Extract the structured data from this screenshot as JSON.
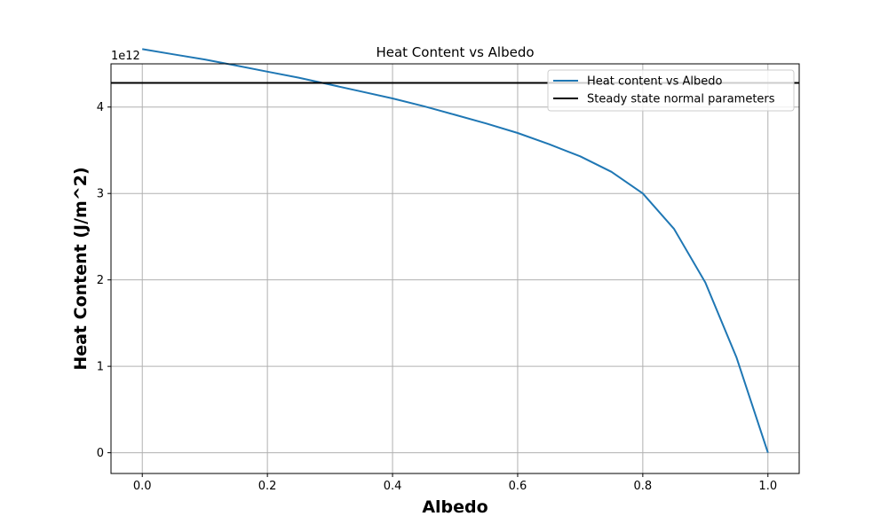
{
  "chart_data": {
    "type": "line",
    "title": "Heat Content vs Albedo",
    "xlabel": "Albedo",
    "ylabel": "Heat Content (J/m^2)",
    "y_scale_label": "1e12",
    "y_scale_factor": 1000000000000.0,
    "xlim": [
      -0.05,
      1.05
    ],
    "ylim": [
      -0.24,
      4.5
    ],
    "x_ticks": [
      0.0,
      0.2,
      0.4,
      0.6,
      0.8,
      1.0
    ],
    "x_tick_labels": [
      "0.0",
      "0.2",
      "0.4",
      "0.6",
      "0.8",
      "1.0"
    ],
    "y_ticks": [
      0,
      1,
      2,
      3,
      4
    ],
    "y_tick_labels": [
      "0",
      "1",
      "2",
      "3",
      "4"
    ],
    "grid": true,
    "legend_position": "top-right",
    "series": [
      {
        "name": "Heat content vs Albedo",
        "color": "#1f77b4",
        "x": [
          0.0,
          0.05,
          0.1,
          0.15,
          0.2,
          0.25,
          0.3,
          0.35,
          0.4,
          0.45,
          0.5,
          0.55,
          0.6,
          0.65,
          0.7,
          0.75,
          0.8,
          0.85,
          0.9,
          0.95,
          1.0
        ],
        "y": [
          4.67,
          4.61,
          4.55,
          4.48,
          4.41,
          4.34,
          4.26,
          4.18,
          4.1,
          4.01,
          3.91,
          3.81,
          3.7,
          3.57,
          3.43,
          3.25,
          3.0,
          2.59,
          1.97,
          1.1,
          0.0
        ]
      },
      {
        "name": "Steady state normal parameters",
        "color": "#000000",
        "kind": "hline",
        "y": 4.28
      }
    ]
  }
}
